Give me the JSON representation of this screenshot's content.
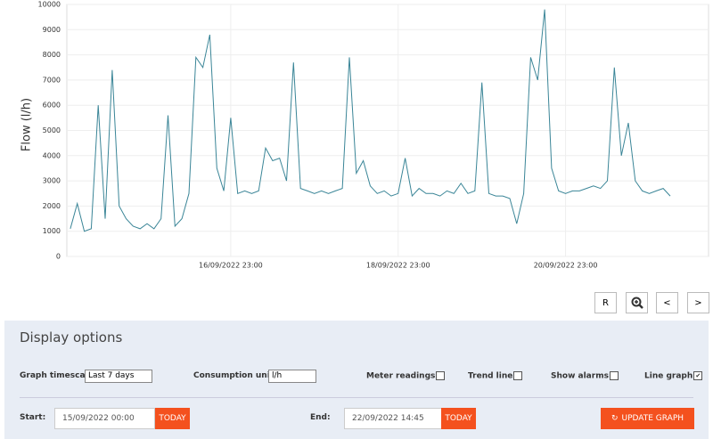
{
  "chart_data": {
    "type": "line",
    "y_label": "Flow (l/h)",
    "categories": [
      null,
      null,
      null,
      null,
      null,
      null,
      null,
      null,
      null,
      null,
      null,
      null,
      null,
      null,
      null,
      null,
      null,
      null,
      null,
      null,
      null,
      null,
      null,
      "16/09/2022 23:00",
      null,
      null,
      null,
      null,
      null,
      null,
      null,
      null,
      null,
      null,
      null,
      null,
      null,
      null,
      null,
      null,
      null,
      null,
      null,
      null,
      null,
      null,
      null,
      "18/09/2022 23:00",
      null,
      null,
      null,
      null,
      null,
      null,
      null,
      null,
      null,
      null,
      null,
      null,
      null,
      null,
      null,
      null,
      null,
      null,
      null,
      null,
      null,
      null,
      null,
      "20/09/2022 23:00",
      null,
      null,
      null,
      null,
      null,
      null,
      null,
      null,
      null,
      null,
      null,
      null,
      null,
      null,
      null,
      null,
      null,
      null,
      null,
      null
    ],
    "values": [
      1100,
      2100,
      1000,
      1100,
      6000,
      1500,
      7400,
      2000,
      1500,
      1200,
      1100,
      1300,
      1100,
      1500,
      5600,
      1200,
      1500,
      2500,
      7900,
      7500,
      8800,
      3500,
      2600,
      5500,
      2500,
      2600,
      2500,
      2600,
      4300,
      3800,
      3900,
      3000,
      7700,
      2700,
      2600,
      2500,
      2600,
      2500,
      2600,
      2700,
      7900,
      3300,
      3800,
      2800,
      2500,
      2600,
      2400,
      2500,
      3900,
      2400,
      2700,
      2500,
      2500,
      2400,
      2600,
      2500,
      2900,
      2500,
      2600,
      6900,
      2500,
      2400,
      2400,
      2300,
      1300,
      2500,
      7900,
      7000,
      9800,
      3500,
      2600,
      2500,
      2600,
      2600,
      2700,
      2800,
      2700,
      3000,
      7500,
      4000,
      5300,
      3000,
      2600,
      2500,
      2600,
      2700,
      2400,
      null,
      null,
      null,
      null,
      null
    ],
    "color": "#3a8597",
    "ylim": [
      0,
      10000
    ],
    "yticks": [
      0,
      1000,
      2000,
      3000,
      4000,
      5000,
      6000,
      7000,
      8000,
      9000,
      10000
    ],
    "grid": true
  },
  "nav": {
    "reset": "R",
    "prev": "<",
    "next": ">"
  },
  "panel": {
    "title": "Display options",
    "timescale_label": "Graph timescale:",
    "timescale": "Last 7 days",
    "units_label": "Consumption units:",
    "units": "l/h",
    "checkboxes": [
      {
        "label": "Meter readings",
        "checked": false
      },
      {
        "label": "Trend line",
        "checked": false
      },
      {
        "label": "Show alarms",
        "checked": false
      },
      {
        "label": "Line graph",
        "checked": true
      }
    ],
    "start_label": "Start:",
    "start": "15/09/2022 00:00",
    "end_label": "End:",
    "end": "22/09/2022 14:45",
    "today": "TODAY",
    "update": "UPDATE GRAPH"
  }
}
